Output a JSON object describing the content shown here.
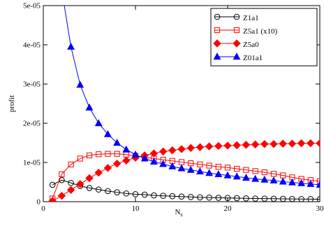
{
  "chart_data": {
    "type": "line",
    "ylabel": "profit",
    "xlabel": "N",
    "xlabel_sub": "s",
    "xlim": [
      0,
      30
    ],
    "xticks": [
      0,
      10,
      20,
      30
    ],
    "ylim": [
      0,
      5e-05
    ],
    "yticks": [
      0,
      {
        "value": 1e-05,
        "label": "1e-05"
      },
      {
        "value": 2e-05,
        "label": "2e-05"
      },
      {
        "value": 3e-05,
        "label": "3e-05"
      },
      {
        "value": 4e-05,
        "label": "4e-05"
      },
      {
        "value": 5e-05,
        "label": "5e-05"
      }
    ],
    "legend": "upper right",
    "x": [
      1,
      2,
      3,
      4,
      5,
      6,
      7,
      8,
      9,
      10,
      11,
      12,
      13,
      14,
      15,
      16,
      17,
      18,
      19,
      20,
      21,
      22,
      23,
      24,
      25,
      26,
      27,
      28,
      29,
      30
    ],
    "series": [
      {
        "name": "Z1a1",
        "color": "#000000",
        "marker": "circle-open",
        "values": [
          4.3e-06,
          5.5e-06,
          4.8e-06,
          4e-06,
          3.5e-06,
          3.1e-06,
          2.7e-06,
          2.4e-06,
          2.1e-06,
          1.9e-06,
          1.8e-06,
          1.6e-06,
          1.5e-06,
          1.4e-06,
          1.3e-06,
          1.2e-06,
          1.1e-06,
          1.05e-06,
          1e-06,
          9.5e-07,
          9e-07,
          8.5e-07,
          8e-07,
          7.8e-07,
          7.5e-07,
          7.2e-07,
          7e-07,
          6.7e-07,
          6.5e-07,
          6.2e-07
        ]
      },
      {
        "name": "Z5a1 (x10)",
        "color": "#ff0000",
        "marker": "square-open",
        "values": [
          8e-07,
          7e-06,
          9.5e-06,
          1.1e-05,
          1.18e-05,
          1.21e-05,
          1.22e-05,
          1.22e-05,
          1.2e-05,
          1.17e-05,
          1.13e-05,
          1.1e-05,
          1.07e-05,
          1.04e-05,
          1.01e-05,
          9.8e-06,
          9.5e-06,
          9.2e-06,
          8.9e-06,
          8.7e-06,
          8.4e-06,
          8.1e-06,
          7.8e-06,
          7.5e-06,
          7.1e-06,
          6.7e-06,
          6.2e-06,
          5.8e-06,
          5.5e-06,
          5.2e-06
        ]
      },
      {
        "name": "Z5a0",
        "color": "#ff0000",
        "marker": "diamond-filled",
        "values": [
          2e-07,
          1.5e-06,
          3e-06,
          4.5e-06,
          6e-06,
          7.4e-06,
          8.6e-06,
          9.7e-06,
          1.05e-05,
          1.12e-05,
          1.18e-05,
          1.23e-05,
          1.28e-05,
          1.31e-05,
          1.34e-05,
          1.37e-05,
          1.39e-05,
          1.41e-05,
          1.42e-05,
          1.43e-05,
          1.44e-05,
          1.45e-05,
          1.46e-05,
          1.47e-05,
          1.47e-05,
          1.48e-05,
          1.48e-05,
          1.49e-05,
          1.49e-05,
          1.49e-05
        ]
      },
      {
        "name": "Z01a1",
        "color": "#0000ff",
        "marker": "triangle-filled",
        "values": [
          null,
          5.4e-05,
          3.95e-05,
          2.98e-05,
          2.4e-05,
          2e-05,
          1.72e-05,
          1.5e-05,
          1.33e-05,
          1.2e-05,
          1.1e-05,
          1.02e-05,
          9.6e-06,
          9e-06,
          8.5e-06,
          8.1e-06,
          7.7e-06,
          7.3e-06,
          7e-06,
          6.7e-06,
          6.4e-06,
          6.1e-06,
          5.8e-06,
          5.6e-06,
          5.4e-06,
          5.1e-06,
          4.9e-06,
          4.7e-06,
          4.5e-06,
          4.3e-06
        ]
      }
    ]
  }
}
